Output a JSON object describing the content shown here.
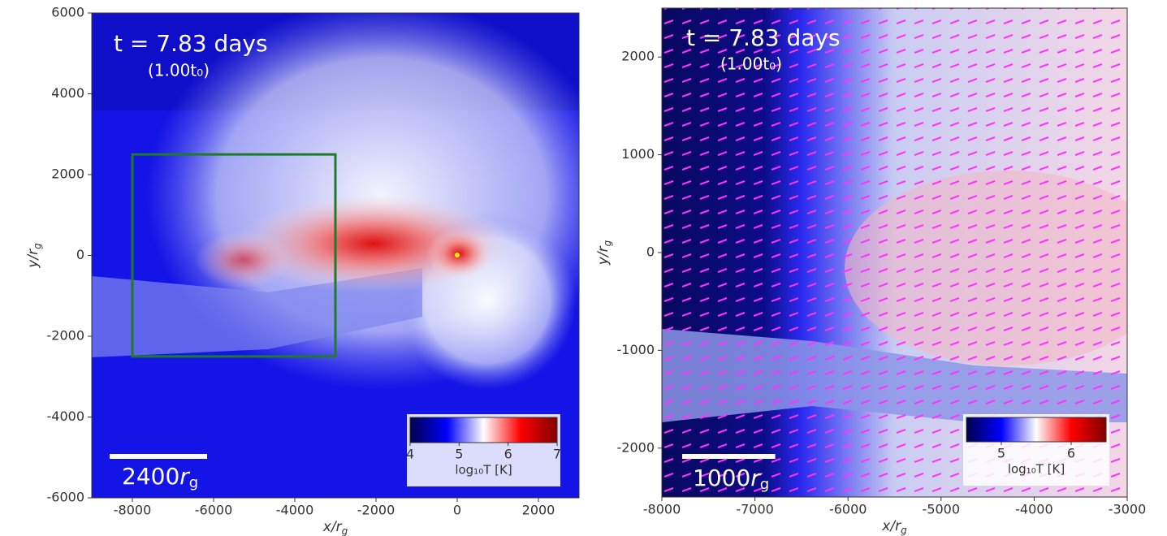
{
  "chart_data": [
    {
      "type": "image",
      "time_label": "t = 7.83 days",
      "subtitle": "(1.00t₀)",
      "xlabel": "x/r",
      "ylabel": "y/r",
      "subscript": "g",
      "xlim": [
        -9000,
        3000
      ],
      "xticks": [
        -8000,
        -6000,
        -4000,
        -2000,
        0,
        2000
      ],
      "ylim": [
        -6000,
        6000
      ],
      "yticks": [
        -6000,
        -4000,
        -2000,
        0,
        2000,
        4000,
        6000
      ],
      "inset_box": {
        "xlim": [
          -8000,
          -3000
        ],
        "ylim": [
          -2500,
          2500
        ],
        "color": "#1f7a2a"
      },
      "scale_bar": {
        "value": 2400,
        "unit": "r"
      },
      "colorbar": {
        "clim": [
          4,
          7
        ],
        "ticks": [
          4,
          5,
          6,
          7
        ],
        "label": "log₁₀T [K]",
        "colormap": "seismic"
      }
    },
    {
      "type": "image",
      "time_label": "t = 7.83 days",
      "subtitle": "(1.00t₀)",
      "xlabel": "x/r",
      "ylabel": "y/r",
      "subscript": "g",
      "xlim": [
        -8000,
        -3000
      ],
      "xticks": [
        -8000,
        -7000,
        -6000,
        -5000,
        -4000,
        -3000
      ],
      "ylim": [
        -2500,
        2500
      ],
      "yticks": [
        -2000,
        -1000,
        0,
        1000,
        2000
      ],
      "scale_bar": {
        "value": 1000,
        "unit": "r"
      },
      "colorbar": {
        "clim": [
          4.5,
          6.5
        ],
        "ticks": [
          5,
          6
        ],
        "label": "log₁₀T [K]",
        "colormap": "seismic"
      }
    }
  ]
}
